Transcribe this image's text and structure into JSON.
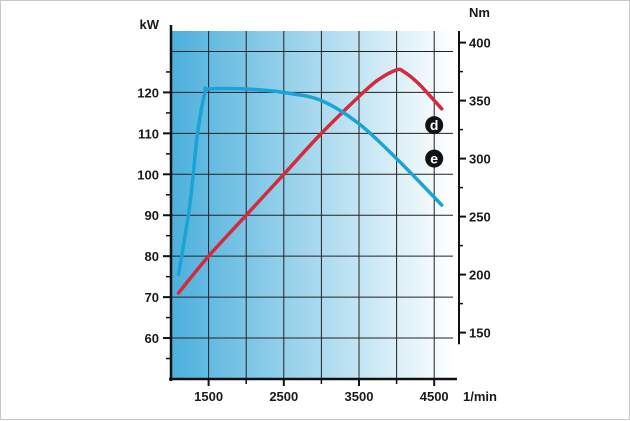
{
  "chart_data": {
    "type": "line",
    "xlabel": "1/min",
    "ylabel": "kW",
    "y2label": "Nm",
    "xlim": [
      1000,
      4750
    ],
    "ylim": [
      50,
      135
    ],
    "y2lim": [
      110,
      410
    ],
    "x_ticks": [
      1500,
      2500,
      3500,
      4500
    ],
    "x_tick_labels": [
      "1500",
      "2500",
      "3500",
      "4500"
    ],
    "y_ticks": [
      60,
      70,
      80,
      90,
      100,
      110,
      120
    ],
    "y_tick_labels": [
      "60",
      "70",
      "80",
      "90",
      "100",
      "110",
      "120"
    ],
    "y2_ticks": [
      150,
      200,
      250,
      300,
      350,
      400
    ],
    "y2_tick_labels": [
      "150",
      "200",
      "250",
      "300",
      "350",
      "400"
    ],
    "grid": true,
    "series": [
      {
        "name": "d",
        "axis": "left",
        "color": "#d42a3c",
        "x": [
          1100,
          1500,
          2000,
          2500,
          3000,
          3500,
          3750,
          4000,
          4100,
          4300,
          4600
        ],
        "y": [
          71,
          80,
          90,
          100,
          110,
          119,
          123,
          125.5,
          125,
          122,
          116
        ]
      },
      {
        "name": "e",
        "axis": "right",
        "color": "#1aa4d6",
        "x": [
          1100,
          1250,
          1350,
          1450,
          1500,
          2000,
          2500,
          3000,
          3500,
          4000,
          4600
        ],
        "y": [
          200,
          260,
          320,
          357,
          360,
          360,
          357,
          350,
          330,
          300,
          260
        ]
      }
    ],
    "background_gradient": [
      "#4cb0dc",
      "#ffffff"
    ],
    "grid_color": "#222222"
  }
}
